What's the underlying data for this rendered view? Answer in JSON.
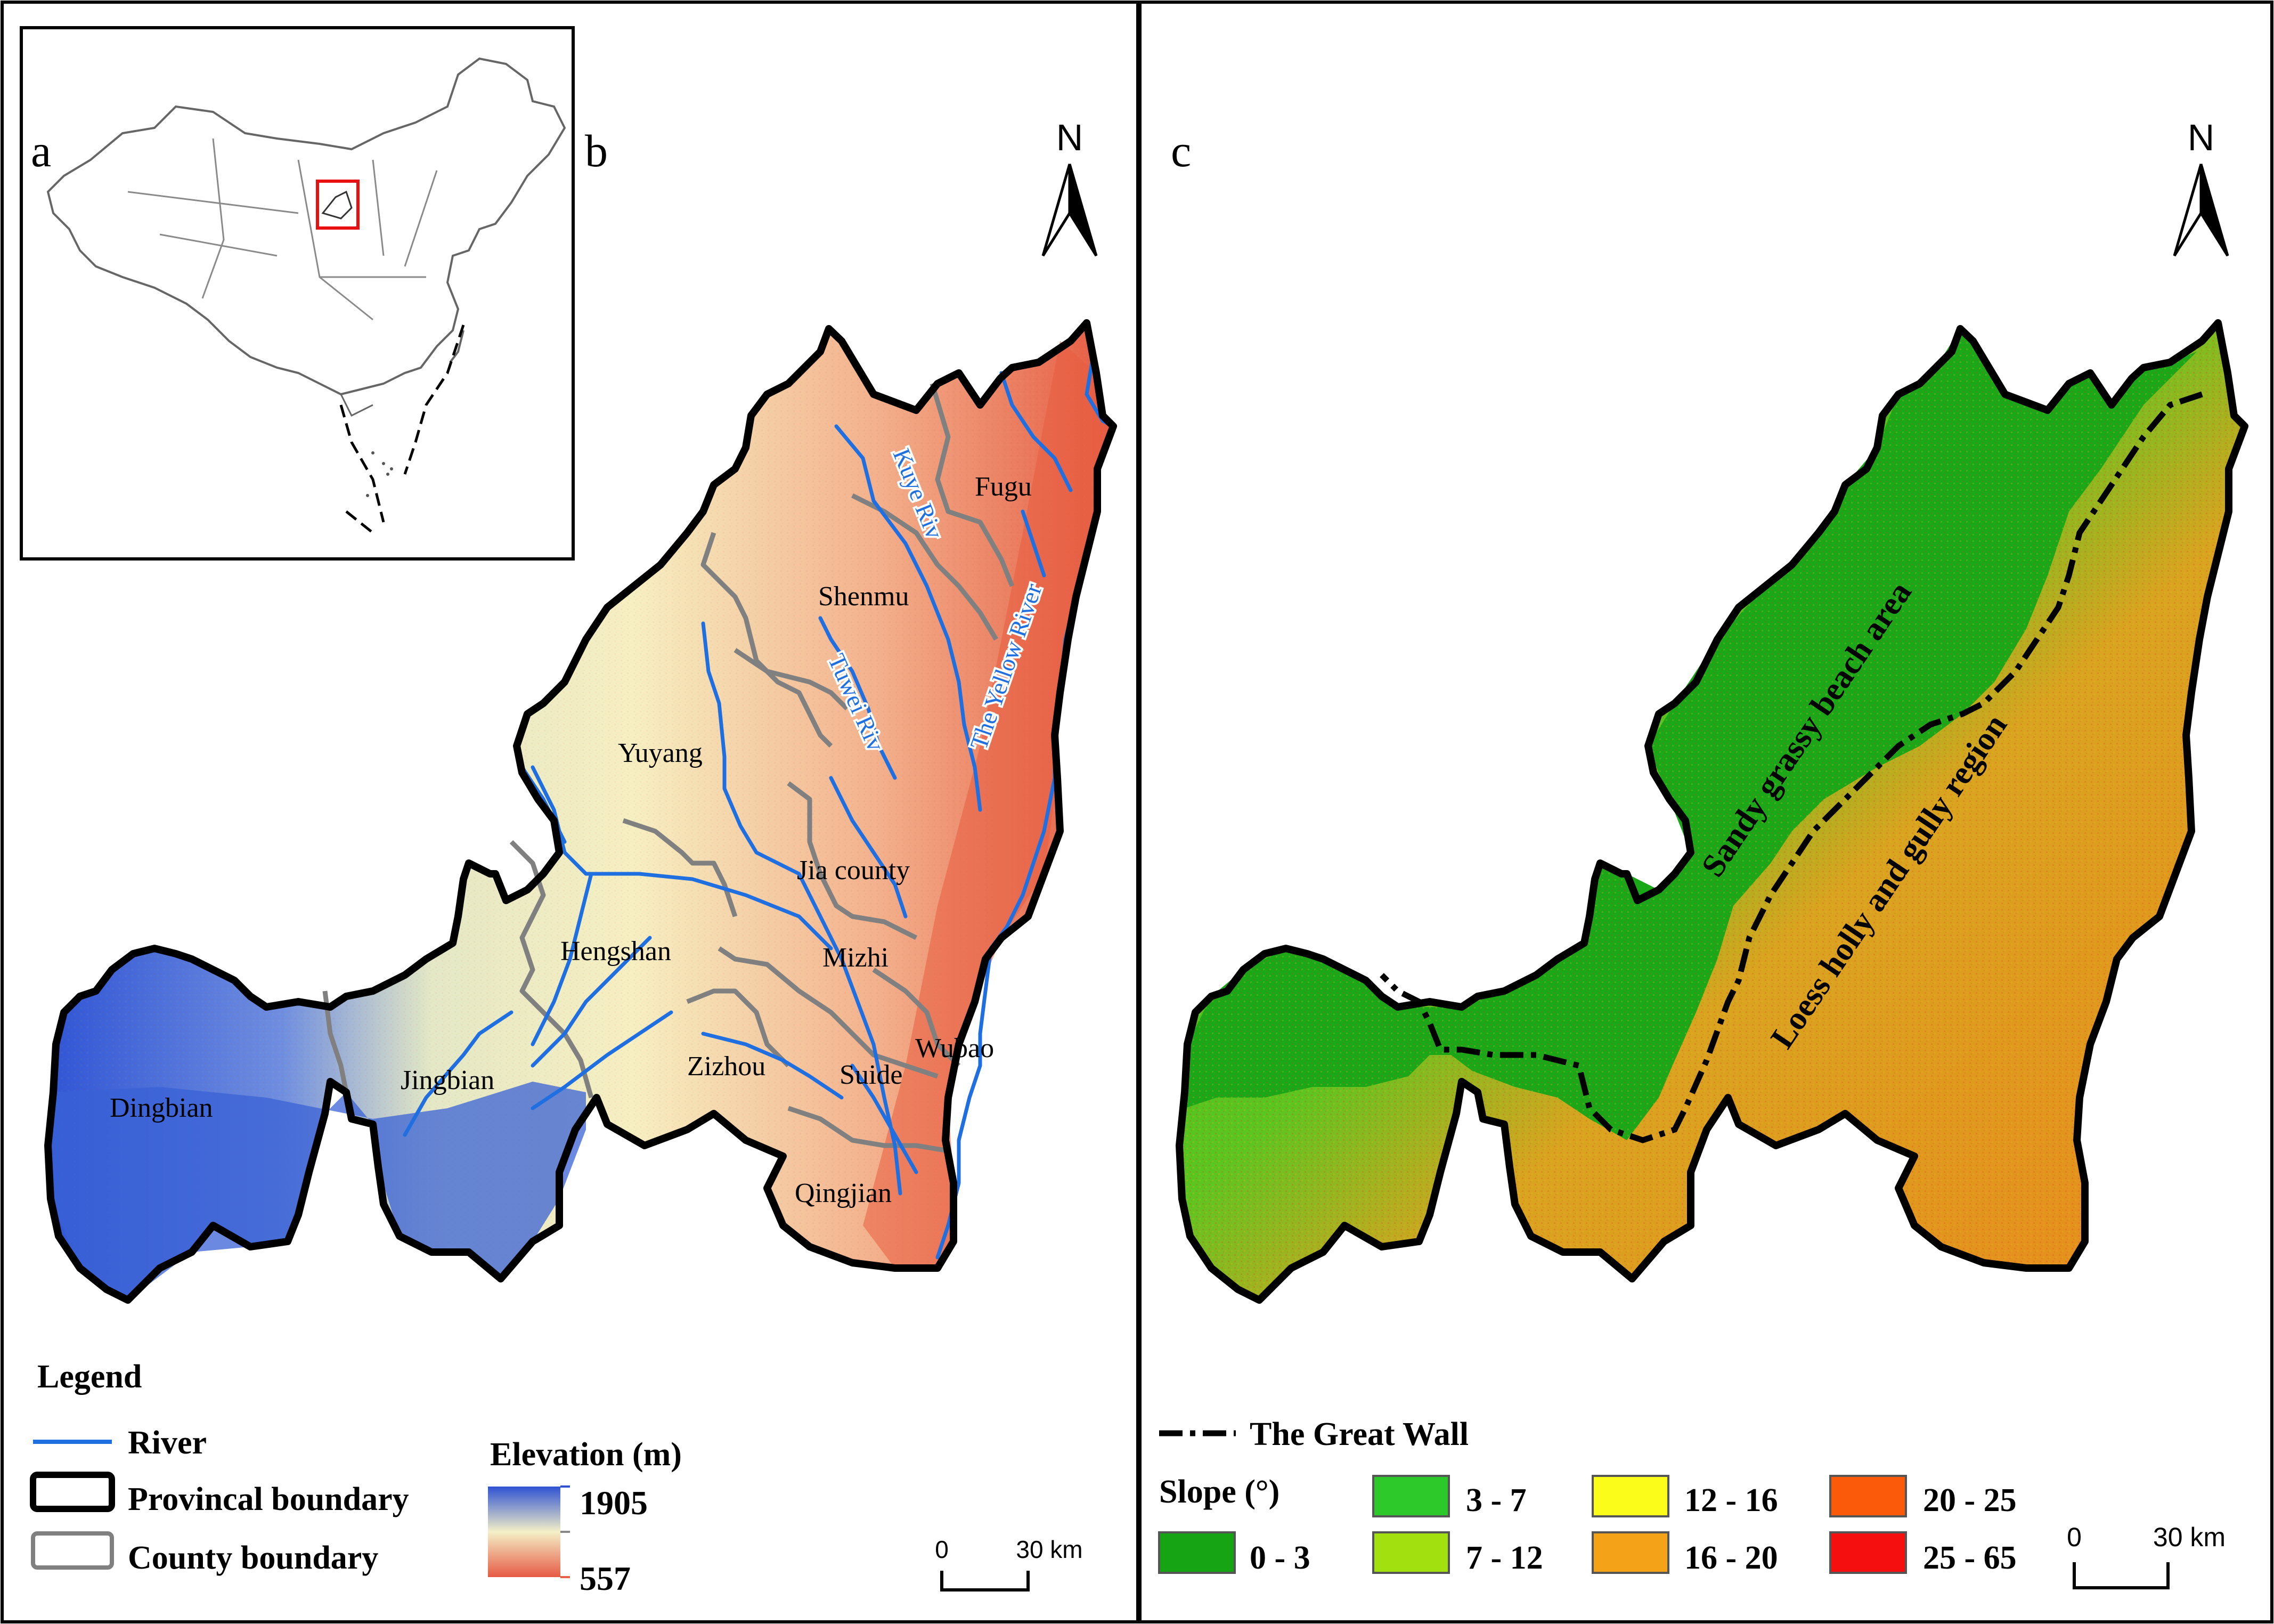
{
  "panels": {
    "a_label": "a",
    "b_label": "b",
    "c_label": "c"
  },
  "north_arrow": {
    "label": "N"
  },
  "counties": [
    "Fugu",
    "Shenmu",
    "Yuyang",
    "Jia county",
    "Hengshan",
    "Mizhi",
    "Wubao",
    "Zizhou",
    "Suide",
    "Jingbian",
    "Dingbian",
    "Qingjian"
  ],
  "rivers": [
    "Kuye Riv",
    "Tuwei Riv",
    "The Yellow River"
  ],
  "regions": [
    "Sandy grassy beach area",
    "Loess holly and gully region"
  ],
  "legend_b": {
    "title": "Legend",
    "river": "River",
    "provincial": "Provincal boundary",
    "county": "County boundary",
    "elevation_title": "Elevation (m)",
    "elevation_max": "1905",
    "elevation_min": "557"
  },
  "legend_c": {
    "great_wall": "The Great Wall",
    "slope_title": "Slope (°)",
    "classes": [
      {
        "label": "0 - 3",
        "color": "#16a314"
      },
      {
        "label": "3 - 7",
        "color": "#2dc82a"
      },
      {
        "label": "7 - 12",
        "color": "#a3e010"
      },
      {
        "label": "12 - 16",
        "color": "#fcfc1a"
      },
      {
        "label": "16 - 20",
        "color": "#f4a218"
      },
      {
        "label": "20 - 25",
        "color": "#fa5a0a"
      },
      {
        "label": "25 - 65",
        "color": "#f50f0f"
      }
    ]
  },
  "scale_bar": {
    "zero": "0",
    "distance": "30 km"
  },
  "colors": {
    "elevation_high": "#3050d0",
    "elevation_mid": "#f4f0c8",
    "elevation_low": "#e86048",
    "river": "#1f6fe0",
    "county_boundary": "#808080",
    "inset_box": "#e81010"
  }
}
